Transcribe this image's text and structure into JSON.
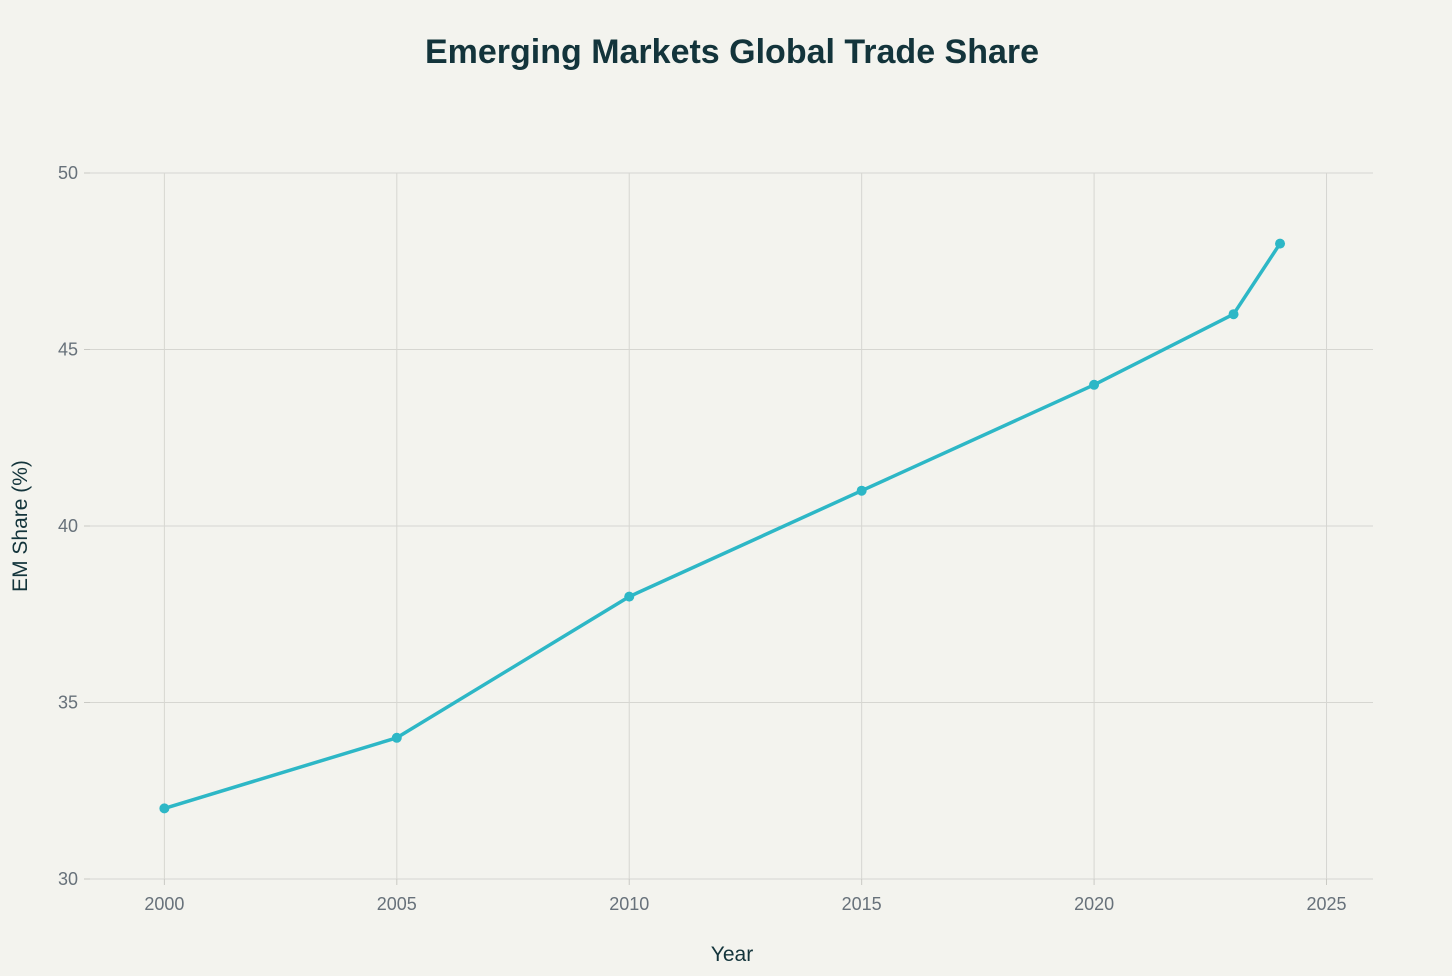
{
  "chart_data": {
    "type": "line",
    "title": "Emerging Markets Global Trade Share",
    "xlabel": "Year",
    "ylabel": "EM Share (%)",
    "xlim": [
      1998.4,
      2026
    ],
    "ylim": [
      30,
      50
    ],
    "x_ticks": [
      2000,
      2005,
      2010,
      2015,
      2020,
      2025
    ],
    "y_ticks": [
      30,
      35,
      40,
      45,
      50
    ],
    "grid": true,
    "legend": "none",
    "series": [
      {
        "color": "#2db7c6",
        "x": [
          2000,
          2005,
          2010,
          2015,
          2020,
          2023,
          2024
        ],
        "y": [
          32,
          34,
          38,
          41,
          44,
          46,
          48
        ]
      }
    ]
  },
  "colors": {
    "background": "#f3f3ee",
    "title": "#13343b",
    "tick_text": "#67717a",
    "grid": "#d6d6d1",
    "line": "#2db7c6"
  }
}
